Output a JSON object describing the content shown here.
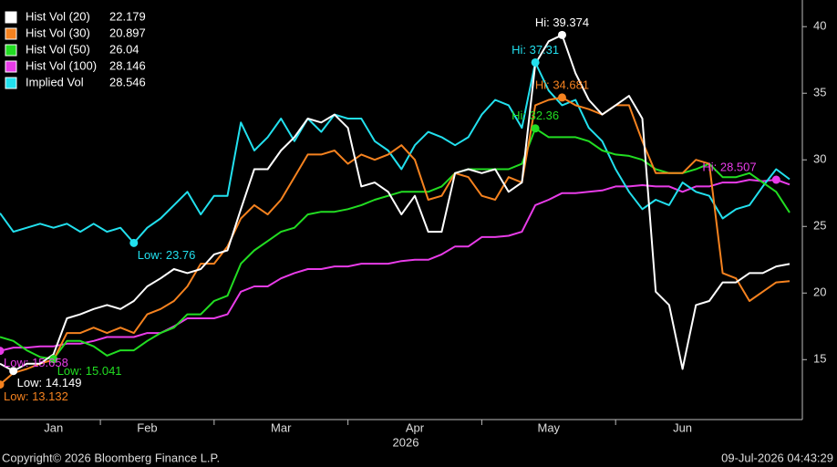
{
  "chart_data": {
    "type": "line",
    "categories": [
      null,
      null,
      null,
      null,
      "Jan",
      null,
      null,
      null,
      null,
      null,
      null,
      "Feb",
      null,
      null,
      null,
      null,
      null,
      null,
      null,
      null,
      null,
      "Mar",
      null,
      null,
      null,
      null,
      null,
      null,
      null,
      null,
      null,
      "Apr",
      null,
      null,
      null,
      null,
      null,
      null,
      null,
      null,
      null,
      "May",
      null,
      null,
      null,
      null,
      null,
      null,
      null,
      null,
      null,
      "Jun",
      null,
      null,
      null,
      null,
      null,
      null,
      null,
      null
    ],
    "xlabel": "2026",
    "ylim": [
      10.5,
      42
    ],
    "yticks": [
      15,
      20,
      25,
      30,
      35,
      40
    ],
    "grid": false,
    "legend": "top-left",
    "footer_left": "Copyright© 2026 Bloomberg Finance L.P.",
    "footer_right": "09-Jul-2026 04:43:29",
    "series": [
      {
        "name": "Hist Vol (20)",
        "color": "#ffffff",
        "annotations": [
          "Hi: 39.374",
          "Low: 14.149"
        ],
        "values": [
          14.7,
          14.149,
          14.7,
          14.7,
          15.4,
          18.1,
          18.4,
          18.8,
          19.1,
          18.8,
          19.4,
          20.5,
          21.1,
          21.8,
          21.5,
          21.8,
          22.9,
          23.2,
          26.3,
          29.3,
          29.3,
          30.7,
          31.7,
          33.1,
          32.8,
          33.4,
          32.4,
          28.0,
          28.3,
          27.6,
          25.9,
          27.3,
          24.6,
          24.6,
          29.0,
          29.3,
          29.0,
          29.3,
          27.6,
          28.3,
          37.2,
          38.9,
          39.374,
          36.5,
          34.5,
          33.4,
          34.1,
          34.8,
          33.1,
          20.1,
          19.1,
          14.3,
          19.1,
          19.4,
          20.8,
          20.8,
          21.5,
          21.5,
          22.0,
          22.179
        ]
      },
      {
        "name": "Hist Vol (30)",
        "color": "#f5821f",
        "annotations": [
          "Hi: 34.681",
          "Low: 13.132"
        ],
        "values": [
          13.132,
          14.0,
          14.3,
          14.7,
          15.0,
          17.0,
          17.0,
          17.4,
          17.0,
          17.4,
          17.0,
          18.4,
          18.8,
          19.4,
          20.5,
          22.2,
          22.2,
          23.5,
          25.6,
          26.6,
          25.9,
          27.0,
          28.7,
          30.4,
          30.4,
          30.7,
          29.7,
          30.4,
          30.0,
          30.4,
          31.1,
          30.0,
          27.0,
          27.3,
          29.0,
          28.7,
          27.3,
          27.0,
          28.7,
          28.3,
          34.1,
          34.5,
          34.681,
          34.1,
          33.8,
          33.4,
          34.1,
          34.1,
          31.4,
          29.0,
          29.0,
          29.0,
          30.0,
          29.7,
          21.5,
          21.1,
          19.4,
          20.1,
          20.8,
          20.897
        ]
      },
      {
        "name": "Hist Vol (50)",
        "color": "#22dd22",
        "annotations": [
          "Hi: 32.36",
          "Low: 15.041"
        ],
        "values": [
          16.7,
          16.4,
          15.7,
          15.2,
          15.041,
          16.4,
          16.4,
          16.0,
          15.3,
          15.7,
          15.7,
          16.4,
          17.0,
          17.4,
          18.4,
          18.4,
          19.4,
          19.8,
          22.2,
          23.2,
          23.9,
          24.6,
          24.9,
          25.9,
          26.1,
          26.1,
          26.3,
          26.6,
          27.0,
          27.3,
          27.6,
          27.6,
          27.6,
          28.0,
          29.0,
          29.3,
          29.3,
          29.3,
          29.3,
          29.7,
          32.36,
          31.7,
          31.7,
          31.7,
          31.4,
          30.7,
          30.4,
          30.3,
          30.0,
          29.3,
          29.0,
          29.0,
          29.3,
          29.7,
          28.7,
          28.7,
          29.0,
          28.3,
          27.6,
          26.04
        ]
      },
      {
        "name": "Hist Vol (100)",
        "color": "#e83ce8",
        "annotations": [
          "Hi: 28.507",
          "Low: 15.658"
        ],
        "values": [
          15.658,
          15.9,
          15.9,
          16.0,
          16.0,
          16.2,
          16.2,
          16.4,
          16.7,
          16.7,
          16.7,
          17.0,
          17.0,
          17.5,
          18.1,
          18.1,
          18.1,
          18.4,
          20.1,
          20.5,
          20.5,
          21.1,
          21.5,
          21.8,
          21.8,
          22.0,
          22.0,
          22.2,
          22.2,
          22.2,
          22.4,
          22.5,
          22.5,
          22.9,
          23.5,
          23.5,
          24.2,
          24.2,
          24.3,
          24.6,
          26.6,
          27.0,
          27.5,
          27.5,
          27.6,
          27.7,
          28.0,
          28.0,
          28.1,
          28.0,
          28.0,
          27.6,
          28.0,
          28.0,
          28.3,
          28.3,
          28.5,
          28.4,
          28.507,
          28.146
        ]
      },
      {
        "name": "Implied Vol",
        "color": "#22e0ee",
        "annotations": [
          "Hi: 37.31",
          "Low: 23.76"
        ],
        "values": [
          26.0,
          24.6,
          24.9,
          25.2,
          24.9,
          25.2,
          24.6,
          25.2,
          24.6,
          24.9,
          23.76,
          24.9,
          25.6,
          26.6,
          27.6,
          25.9,
          27.3,
          27.3,
          32.8,
          30.7,
          31.7,
          33.1,
          31.4,
          33.1,
          32.1,
          33.4,
          33.1,
          33.1,
          31.4,
          30.7,
          29.3,
          31.1,
          32.1,
          31.7,
          31.1,
          31.7,
          33.4,
          34.5,
          34.1,
          32.4,
          37.31,
          35.2,
          34.1,
          34.5,
          32.4,
          31.4,
          29.3,
          27.6,
          26.3,
          27.0,
          26.6,
          28.3,
          27.6,
          27.3,
          25.6,
          26.3,
          26.6,
          28.0,
          29.3,
          28.546
        ]
      }
    ]
  }
}
